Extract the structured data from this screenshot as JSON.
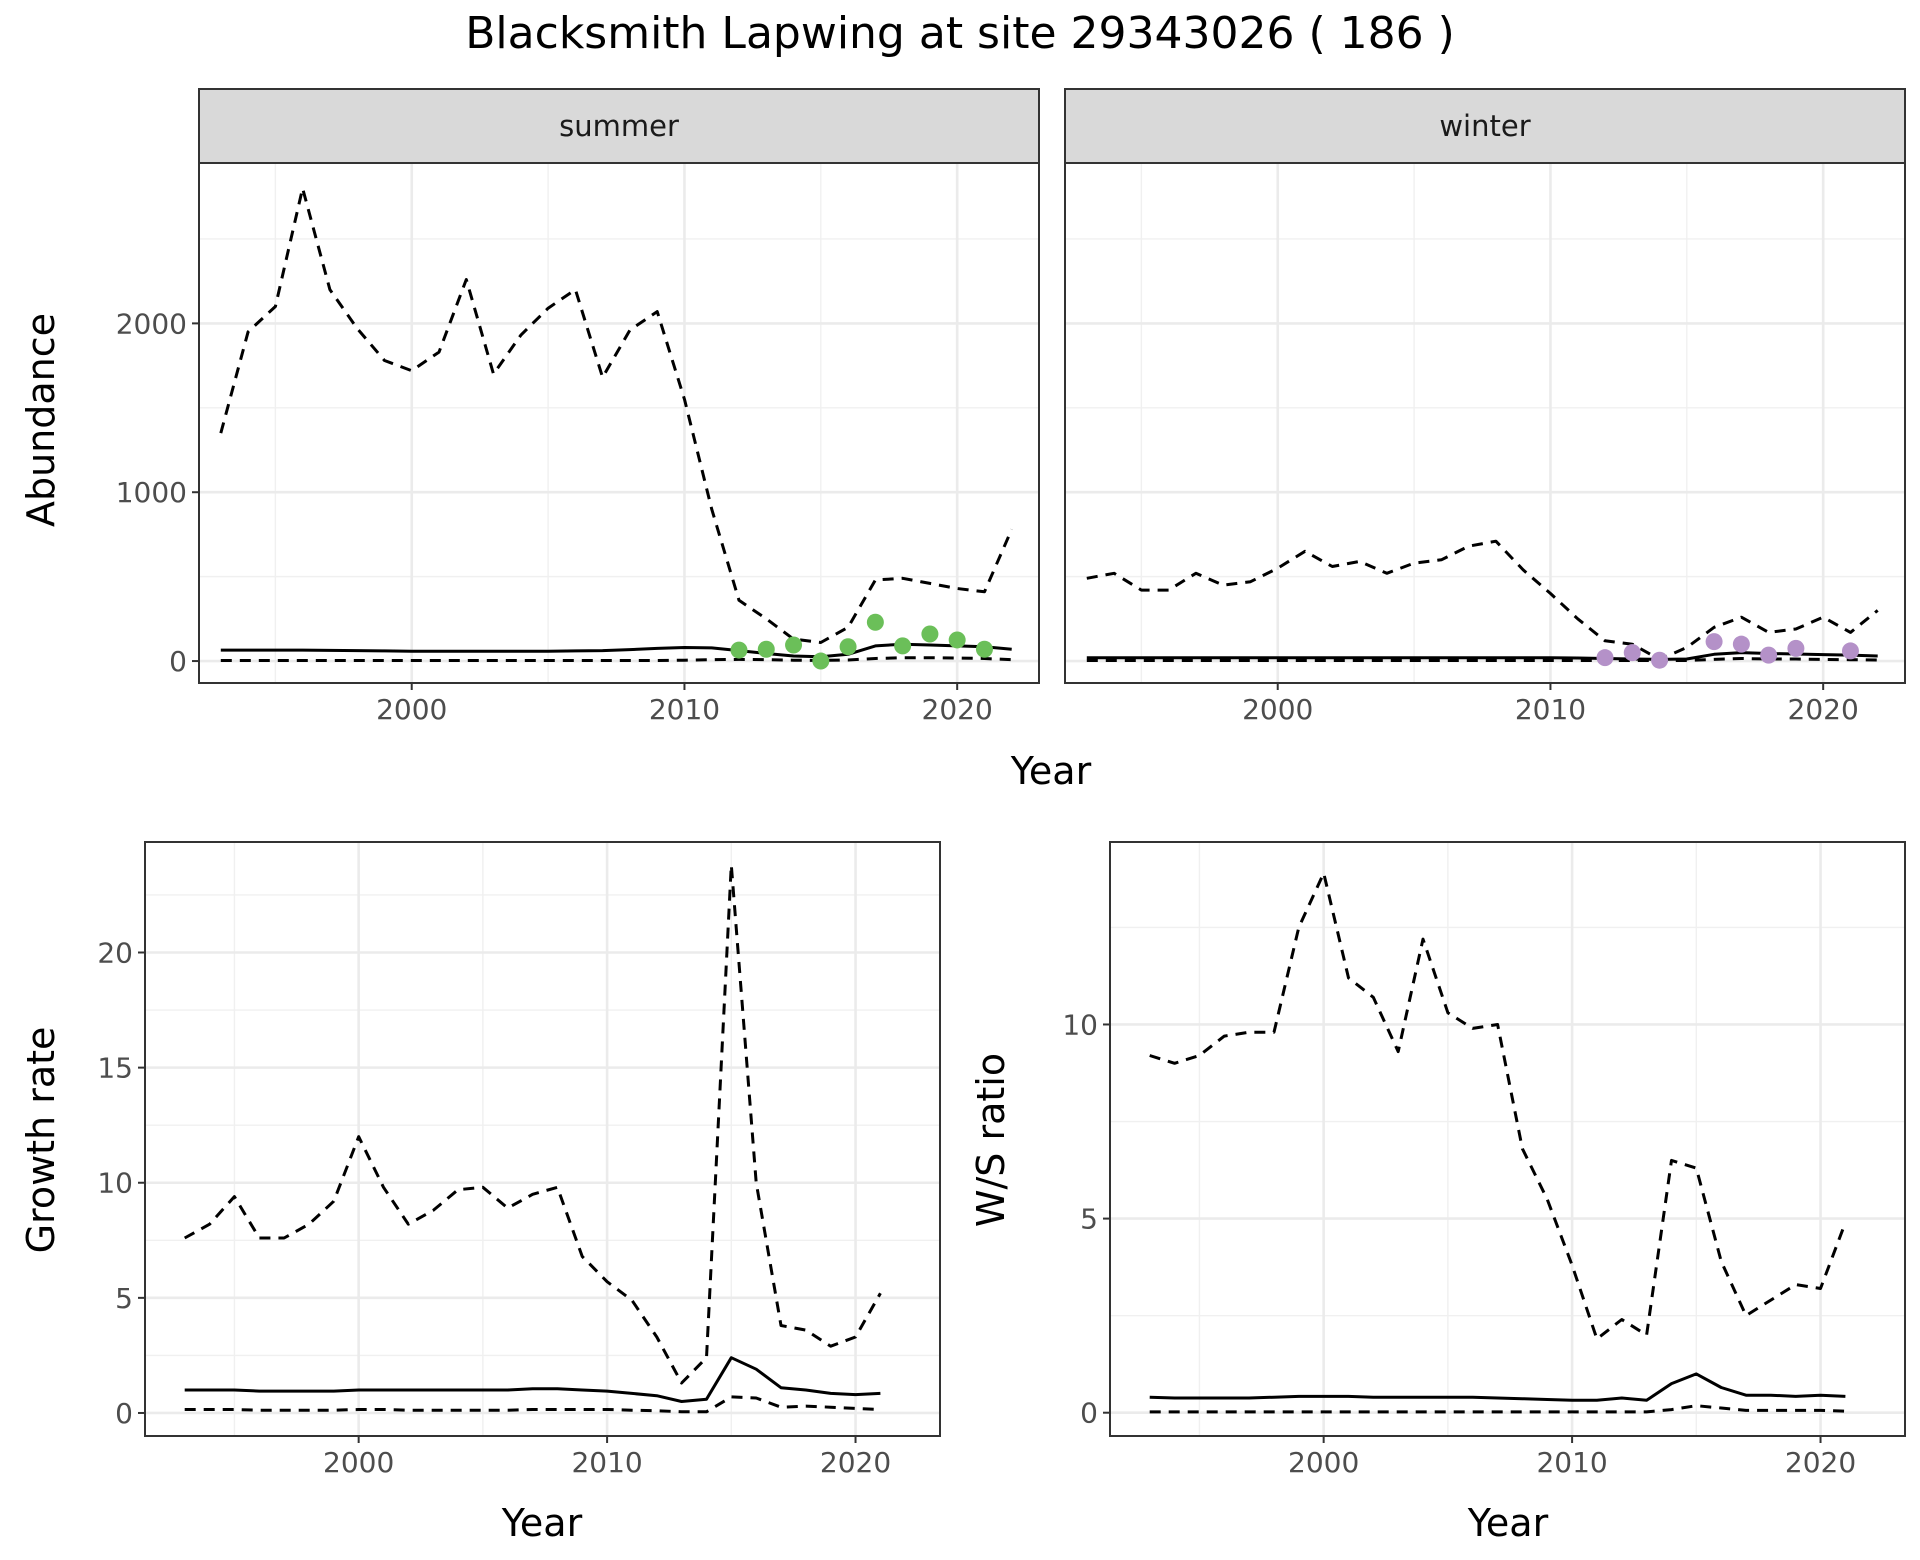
{
  "title": "Blacksmith Lapwing at site 29343026 ( 186 )",
  "chart_data": [
    {
      "id": "abundance",
      "type": "line",
      "facets": [
        "summer",
        "winter"
      ],
      "xlabel": "Year",
      "ylabel": "Abundance",
      "xlim": [
        1992.2,
        2023.0
      ],
      "ylim": [
        -130,
        2950
      ],
      "xticks": [
        2000,
        2010,
        2020
      ],
      "yticks": [
        0,
        1000,
        2000
      ],
      "panels": [
        {
          "facet": "summer",
          "point_color": "#6bbf59",
          "x": [
            1993,
            1994,
            1995,
            1996,
            1997,
            1998,
            1999,
            2000,
            2001,
            2002,
            2003,
            2004,
            2005,
            2006,
            2007,
            2008,
            2009,
            2010,
            2011,
            2012,
            2013,
            2014,
            2015,
            2016,
            2017,
            2018,
            2019,
            2020,
            2021,
            2022
          ],
          "upper": [
            1350,
            1950,
            2100,
            2800,
            2200,
            1970,
            1780,
            1720,
            1830,
            2260,
            1700,
            1930,
            2090,
            2200,
            1680,
            1960,
            2070,
            1550,
            900,
            360,
            250,
            130,
            110,
            200,
            480,
            490,
            460,
            430,
            410,
            780
          ],
          "mean": [
            65,
            65,
            65,
            65,
            63,
            62,
            60,
            58,
            58,
            58,
            58,
            58,
            58,
            60,
            62,
            68,
            75,
            80,
            78,
            62,
            45,
            30,
            25,
            40,
            90,
            100,
            95,
            90,
            85,
            70
          ],
          "lower": [
            3,
            3,
            3,
            3,
            3,
            3,
            3,
            3,
            3,
            3,
            3,
            3,
            3,
            3,
            3,
            3,
            3,
            5,
            8,
            10,
            8,
            5,
            4,
            6,
            15,
            20,
            20,
            18,
            15,
            8
          ],
          "points": {
            "x": [
              2012,
              2013,
              2014,
              2015,
              2016,
              2017,
              2018,
              2019,
              2020,
              2021
            ],
            "y": [
              65,
              70,
              95,
              0,
              85,
              230,
              90,
              160,
              125,
              70
            ]
          }
        },
        {
          "facet": "winter",
          "point_color": "#b491c8",
          "x": [
            1993,
            1994,
            1995,
            1996,
            1997,
            1998,
            1999,
            2000,
            2001,
            2002,
            2003,
            2004,
            2005,
            2006,
            2007,
            2008,
            2009,
            2010,
            2011,
            2012,
            2013,
            2014,
            2015,
            2016,
            2017,
            2018,
            2019,
            2020,
            2021,
            2022
          ],
          "upper": [
            490,
            520,
            420,
            420,
            520,
            450,
            470,
            550,
            650,
            560,
            590,
            520,
            580,
            600,
            680,
            710,
            540,
            400,
            250,
            120,
            100,
            10,
            80,
            200,
            260,
            170,
            190,
            260,
            170,
            300
          ],
          "mean": [
            20,
            20,
            20,
            20,
            20,
            20,
            20,
            20,
            20,
            20,
            20,
            20,
            20,
            20,
            20,
            20,
            20,
            20,
            18,
            15,
            12,
            10,
            12,
            40,
            50,
            45,
            42,
            38,
            35,
            30
          ],
          "lower": [
            3,
            3,
            3,
            3,
            3,
            3,
            3,
            3,
            3,
            3,
            3,
            3,
            3,
            3,
            3,
            3,
            3,
            3,
            3,
            3,
            3,
            3,
            3,
            10,
            15,
            12,
            12,
            10,
            8,
            6
          ],
          "points": {
            "x": [
              2012,
              2013,
              2014,
              2016,
              2017,
              2018,
              2019,
              2021
            ],
            "y": [
              20,
              50,
              5,
              115,
              100,
              35,
              75,
              60
            ]
          }
        }
      ]
    },
    {
      "id": "growth",
      "type": "line",
      "xlabel": "Year",
      "ylabel": "Growth rate",
      "xlim": [
        1991.4,
        2023.4
      ],
      "ylim": [
        -1.0,
        24.8
      ],
      "xticks": [
        2000,
        2010,
        2020
      ],
      "yticks": [
        0,
        5,
        10,
        15,
        20
      ],
      "x": [
        1993,
        1994,
        1995,
        1996,
        1997,
        1998,
        1999,
        2000,
        2001,
        2002,
        2003,
        2004,
        2005,
        2006,
        2007,
        2008,
        2009,
        2010,
        2011,
        2012,
        2013,
        2014,
        2015,
        2016,
        2017,
        2018,
        2019,
        2020,
        2021
      ],
      "upper": [
        7.6,
        8.2,
        9.4,
        7.6,
        7.6,
        8.2,
        9.2,
        12.0,
        9.8,
        8.2,
        8.8,
        9.7,
        9.8,
        8.9,
        9.5,
        9.8,
        6.8,
        5.7,
        4.9,
        3.3,
        1.3,
        2.4,
        23.8,
        10.0,
        3.8,
        3.6,
        2.9,
        3.3,
        5.2
      ],
      "mean": [
        1.0,
        1.0,
        1.0,
        0.95,
        0.95,
        0.95,
        0.95,
        1.0,
        1.0,
        1.0,
        1.0,
        1.0,
        1.0,
        1.0,
        1.05,
        1.05,
        1.0,
        0.95,
        0.85,
        0.75,
        0.5,
        0.6,
        2.4,
        1.9,
        1.1,
        1.0,
        0.85,
        0.8,
        0.85
      ],
      "lower": [
        0.15,
        0.15,
        0.15,
        0.12,
        0.12,
        0.12,
        0.12,
        0.15,
        0.15,
        0.12,
        0.12,
        0.12,
        0.12,
        0.12,
        0.15,
        0.15,
        0.15,
        0.15,
        0.12,
        0.1,
        0.05,
        0.05,
        0.7,
        0.65,
        0.25,
        0.3,
        0.25,
        0.2,
        0.15
      ]
    },
    {
      "id": "ws_ratio",
      "type": "line",
      "xlabel": "Year",
      "ylabel": "W/S ratio",
      "xlim": [
        1991.4,
        2023.4
      ],
      "ylim": [
        -0.6,
        14.7
      ],
      "xticks": [
        2000,
        2010,
        2020
      ],
      "yticks": [
        0,
        5,
        10
      ],
      "x": [
        1993,
        1994,
        1995,
        1996,
        1997,
        1998,
        1999,
        2000,
        2001,
        2002,
        2003,
        2004,
        2005,
        2006,
        2007,
        2008,
        2009,
        2010,
        2011,
        2012,
        2013,
        2014,
        2015,
        2016,
        2017,
        2018,
        2019,
        2020,
        2021
      ],
      "upper": [
        9.2,
        9.0,
        9.2,
        9.7,
        9.8,
        9.8,
        12.5,
        13.9,
        11.2,
        10.7,
        9.3,
        12.2,
        10.3,
        9.9,
        10.0,
        6.8,
        5.5,
        3.8,
        1.9,
        2.4,
        2.0,
        6.5,
        6.3,
        3.9,
        2.5,
        2.9,
        3.3,
        3.2,
        4.9
      ],
      "mean": [
        0.4,
        0.38,
        0.38,
        0.38,
        0.38,
        0.4,
        0.42,
        0.42,
        0.42,
        0.4,
        0.4,
        0.4,
        0.4,
        0.4,
        0.38,
        0.36,
        0.34,
        0.32,
        0.32,
        0.38,
        0.32,
        0.75,
        1.0,
        0.65,
        0.45,
        0.45,
        0.42,
        0.45,
        0.42
      ],
      "lower": [
        0.02,
        0.02,
        0.02,
        0.02,
        0.02,
        0.02,
        0.02,
        0.02,
        0.02,
        0.02,
        0.02,
        0.02,
        0.02,
        0.02,
        0.02,
        0.02,
        0.02,
        0.02,
        0.02,
        0.02,
        0.02,
        0.08,
        0.18,
        0.12,
        0.06,
        0.06,
        0.06,
        0.06,
        0.04
      ]
    }
  ]
}
